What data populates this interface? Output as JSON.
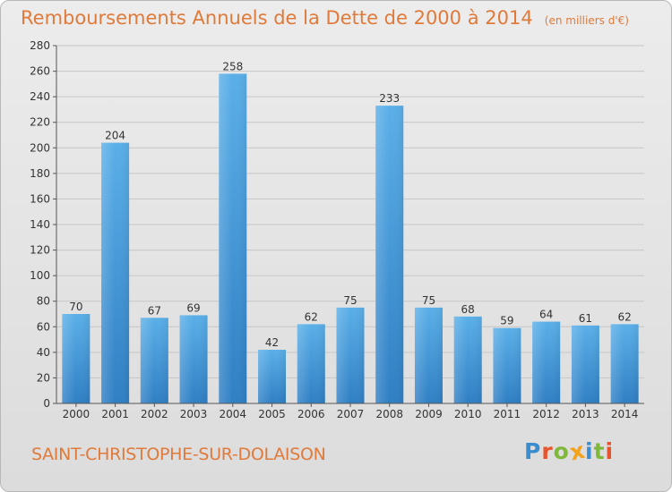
{
  "chart_data": {
    "type": "bar",
    "title": "Remboursements Annuels de la Dette de 2000 à 2014",
    "unit_note": "(en milliers d'€)",
    "categories": [
      "2000",
      "2001",
      "2002",
      "2003",
      "2004",
      "2005",
      "2006",
      "2007",
      "2008",
      "2009",
      "2010",
      "2011",
      "2012",
      "2013",
      "2014"
    ],
    "values": [
      70,
      204,
      67,
      69,
      258,
      42,
      62,
      75,
      233,
      75,
      68,
      59,
      64,
      61,
      62
    ],
    "ylim": [
      0,
      280
    ],
    "yticks": [
      0,
      20,
      40,
      60,
      80,
      100,
      120,
      140,
      160,
      180,
      200,
      220,
      240,
      260,
      280
    ],
    "grid": true,
    "bar_color_top": "#5aafe8",
    "bar_color_bottom": "#2f7fc4"
  },
  "footer": {
    "commune": "SAINT-CHRISTOPHE-SUR-DOLAISON",
    "logo_text": "Proxiti",
    "logo_colors": [
      "#3a8ed0",
      "#e8542b",
      "#7fb83a",
      "#f2a21c",
      "#3a8ed0",
      "#7fb83a",
      "#e8542b"
    ]
  },
  "colors": {
    "title": "#e07a3a",
    "grid": "#c6c6c6",
    "axis": "#555555",
    "text": "#333333"
  }
}
